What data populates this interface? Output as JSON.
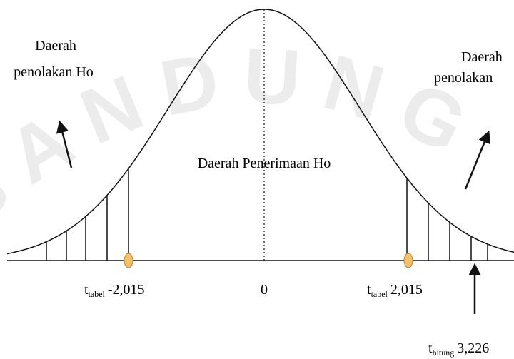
{
  "watermark": "BANDUNG",
  "left_region": {
    "line1": "Daerah",
    "line2": "penolakan Ho"
  },
  "right_region": {
    "line1": "Daerah",
    "line2": "penolakan"
  },
  "center_region": "Daerah Penerimaan Ho",
  "left_critical": {
    "symbol": "t",
    "subscript": "tabel",
    "value": "-2,015"
  },
  "center_label": "0",
  "right_critical": {
    "symbol": "t",
    "subscript": "tabel",
    "value": "2,015"
  },
  "computed": {
    "symbol": "t",
    "subscript": "hitung",
    "value": "3,226"
  }
}
